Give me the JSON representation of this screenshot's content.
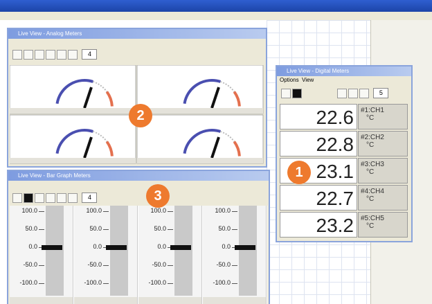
{
  "badges": [
    "1",
    "2",
    "3"
  ],
  "analog_window": {
    "title": "Live View - Analog Meters",
    "spinner": "4"
  },
  "digital_window": {
    "title": "Live View - Digital Meters",
    "menu": [
      "Options",
      "View"
    ],
    "spinner": "5",
    "meters": [
      {
        "value": "22.6",
        "channel": "#1:CH1",
        "unit": "°C"
      },
      {
        "value": "22.8",
        "channel": "#2:CH2",
        "unit": "°C"
      },
      {
        "value": "23.1",
        "channel": "#3:CH3",
        "unit": "°C"
      },
      {
        "value": "22.7",
        "channel": "#4:CH4",
        "unit": "°C"
      },
      {
        "value": "23.2",
        "channel": "#5:CH5",
        "unit": "°C"
      }
    ]
  },
  "bar_window": {
    "title": "Live View - Bar Graph Meters",
    "spinner": "4",
    "scale": [
      "100.0",
      "50.0",
      "0.0",
      "-50.0",
      "-100.0"
    ]
  }
}
